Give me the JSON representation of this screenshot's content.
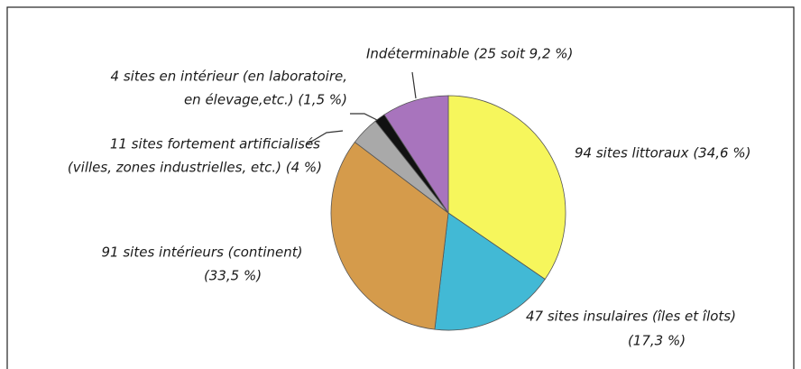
{
  "chart_data": {
    "type": "pie",
    "categories": [
      [
        "94 sites littoraux (34,6 %)"
      ],
      [
        "47 sites insulaires (îles et îlots)",
        "(17,3 %)"
      ],
      [
        "91 sites intérieurs (continent)",
        "(33,5 %)"
      ],
      [
        "11 sites fortement artificialisés",
        "(villes, zones industrielles, etc.) (4 %)"
      ],
      [
        "4 sites en intérieur (en laboratoire,",
        "en élevage,etc.) (1,5 %)"
      ],
      [
        "Indéterminable (25 soit 9,2 %)"
      ]
    ],
    "values": [
      34.6,
      17.3,
      33.5,
      4,
      1.5,
      9.2
    ],
    "colors": [
      "#f6f65c",
      "#42b9d5",
      "#d59b4b",
      "#a9a9a9",
      "#111111",
      "#a874bd"
    ]
  }
}
